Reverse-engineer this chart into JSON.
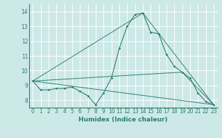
{
  "title": "",
  "xlabel": "Humidex (Indice chaleur)",
  "ylabel": "",
  "background_color": "#cce9e8",
  "grid_color": "#ffffff",
  "line_color": "#2e7d6e",
  "xlim": [
    -0.5,
    23.5
  ],
  "ylim": [
    7.5,
    14.5
  ],
  "xticks": [
    0,
    1,
    2,
    3,
    4,
    5,
    6,
    7,
    8,
    9,
    10,
    11,
    12,
    13,
    14,
    15,
    16,
    17,
    18,
    19,
    20,
    21,
    22,
    23
  ],
  "yticks": [
    8,
    9,
    10,
    11,
    12,
    13,
    14
  ],
  "main_line": {
    "x": [
      0,
      1,
      2,
      3,
      4,
      5,
      6,
      7,
      8,
      9,
      10,
      11,
      12,
      13,
      14,
      15,
      16,
      17,
      18,
      19,
      20,
      21,
      22,
      23
    ],
    "y": [
      9.3,
      8.7,
      8.7,
      8.8,
      8.8,
      8.9,
      8.6,
      8.3,
      7.7,
      8.5,
      9.5,
      11.5,
      13.0,
      13.8,
      13.9,
      12.6,
      12.5,
      11.1,
      10.3,
      9.9,
      9.5,
      8.5,
      7.9,
      7.7
    ]
  },
  "trend_lines": [
    {
      "x": [
        0,
        14
      ],
      "y": [
        9.3,
        13.9
      ]
    },
    {
      "x": [
        14,
        23
      ],
      "y": [
        13.9,
        7.7
      ]
    },
    {
      "x": [
        0,
        23
      ],
      "y": [
        9.3,
        7.7
      ]
    },
    {
      "x": [
        0,
        19,
        23
      ],
      "y": [
        9.3,
        9.9,
        7.7
      ]
    }
  ],
  "xlabel_fontsize": 6.5,
  "tick_fontsize": 5.5
}
